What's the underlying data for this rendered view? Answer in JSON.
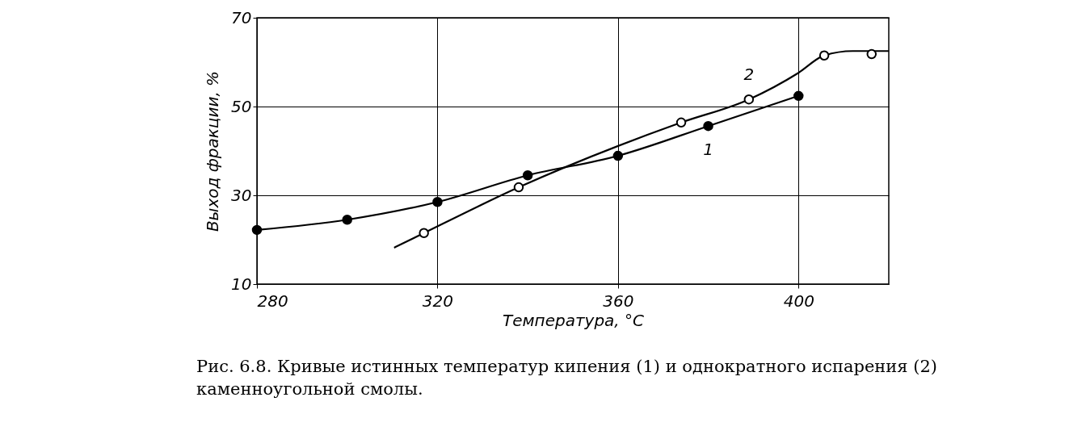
{
  "chart_data": {
    "type": "line",
    "xlabel": "Температура, °C",
    "ylabel": "Выход фракции, %",
    "xlim": [
      280,
      420
    ],
    "ylim": [
      10,
      70
    ],
    "xticks": [
      280,
      320,
      360,
      400
    ],
    "yticks": [
      10,
      30,
      50,
      70
    ],
    "grid": true,
    "series": [
      {
        "name": "1",
        "color": "#000000",
        "marker": "none",
        "x": [
          280,
          300,
          320,
          340,
          360,
          380,
          400
        ],
        "values": [
          22.2,
          24.5,
          28.5,
          34.5,
          38.9,
          45.6,
          52.4
        ]
      },
      {
        "type": "scatter",
        "color": "#000000",
        "marker": "circle",
        "x": [
          280,
          300,
          320,
          340,
          360,
          380,
          400
        ],
        "values": [
          22.2,
          24.5,
          28.5,
          34.5,
          38.9,
          45.6,
          52.4
        ]
      },
      {
        "name": "2",
        "color": "#000000",
        "marker": "none",
        "x": [
          310.4,
          317,
          338,
          374,
          389,
          400,
          405.7,
          412,
          420
        ],
        "values": [
          18.2,
          21.5,
          31.8,
          46.4,
          51.6,
          57.6,
          61.5,
          62.5,
          62.5
        ]
      },
      {
        "type": "scatter",
        "color": "#ffffff",
        "marker": "circle",
        "x": [
          317,
          338,
          374,
          389,
          405.7,
          416.2
        ],
        "values": [
          21.5,
          31.8,
          46.4,
          51.6,
          61.5,
          61.8
        ]
      }
    ],
    "annotations": [
      "Рис. 6.8. Кривые истинных температур кипения (1) и однократного испарения (2) каменноугольной смолы."
    ]
  }
}
